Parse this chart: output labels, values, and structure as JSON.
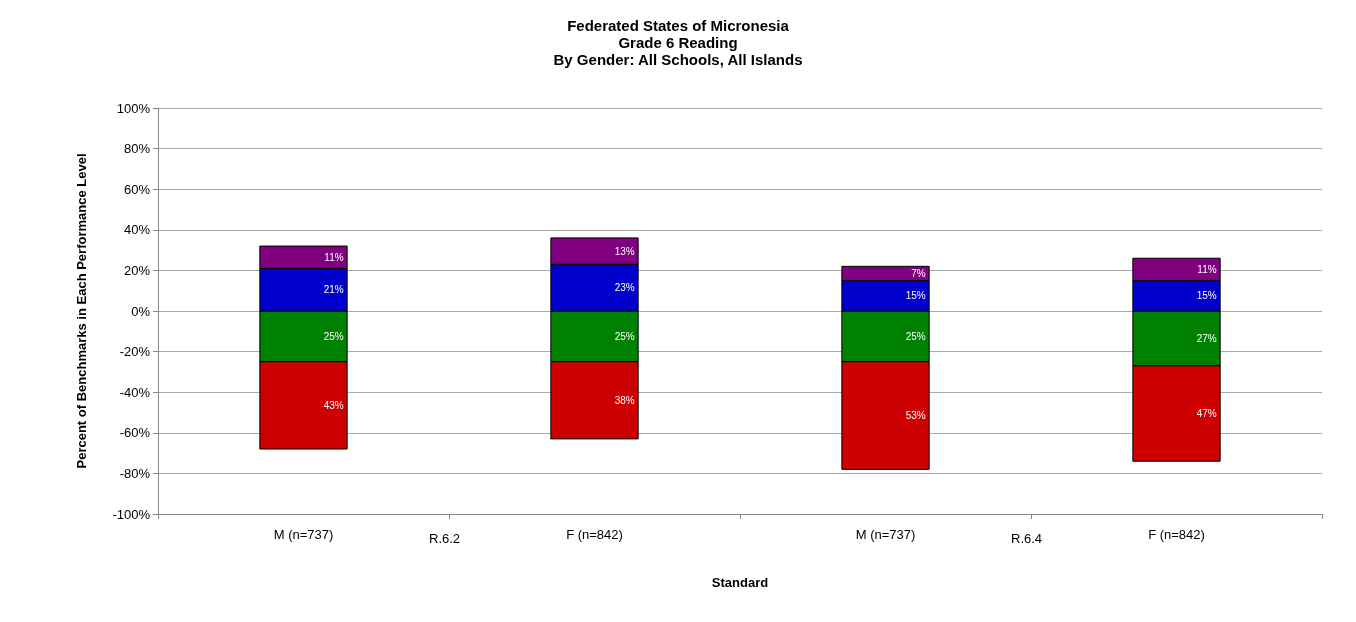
{
  "chart_data": {
    "type": "bar",
    "title": "Federated States of Micronesia\nGrade 6 Reading\nBy Gender: All Schools, All Islands",
    "xlabel": "Standard",
    "ylabel": "Percent of Benchmarks in Each Performance Level",
    "categories": [
      "M (n=737)",
      "F (n=842)",
      "M (n=737)",
      "F (n=842)"
    ],
    "annotations": [
      "R.6.2",
      "R.6.4"
    ],
    "series": [
      {
        "color": "#008000",
        "base": [
          -25,
          -25,
          -25,
          -27
        ],
        "values": [
          25,
          25,
          25,
          27
        ],
        "value_labels": [
          "25%",
          "25%",
          "25%",
          "27%"
        ]
      },
      {
        "color": "#cc0000",
        "base": [
          -68,
          -63,
          -78,
          -74
        ],
        "values": [
          43,
          38,
          53,
          47
        ],
        "value_labels": [
          "43%",
          "38%",
          "53%",
          "47%"
        ]
      },
      {
        "color": "#0000cc",
        "base": [
          0,
          0,
          0,
          0
        ],
        "values": [
          21,
          23,
          15,
          15
        ],
        "value_labels": [
          "21%",
          "23%",
          "15%",
          "15%"
        ]
      },
      {
        "color": "#800080",
        "base": [
          21,
          23,
          15,
          15
        ],
        "values": [
          11,
          13,
          7,
          11
        ],
        "value_labels": [
          "11%",
          "13%",
          "7%",
          "11%"
        ]
      }
    ],
    "ylim": [
      -100,
      100
    ],
    "yticks": [
      {
        "value": -100,
        "label": "-100%"
      },
      {
        "value": -80,
        "label": "-80%"
      },
      {
        "value": -60,
        "label": "-60%"
      },
      {
        "value": -40,
        "label": "-40%"
      },
      {
        "value": -20,
        "label": "-20%"
      },
      {
        "value": 0,
        "label": "0%"
      },
      {
        "value": 20,
        "label": "20%"
      },
      {
        "value": 40,
        "label": "40%"
      },
      {
        "value": 60,
        "label": "60%"
      },
      {
        "value": 80,
        "label": "80%"
      },
      {
        "value": 100,
        "label": "100%"
      }
    ],
    "grid": "y"
  }
}
